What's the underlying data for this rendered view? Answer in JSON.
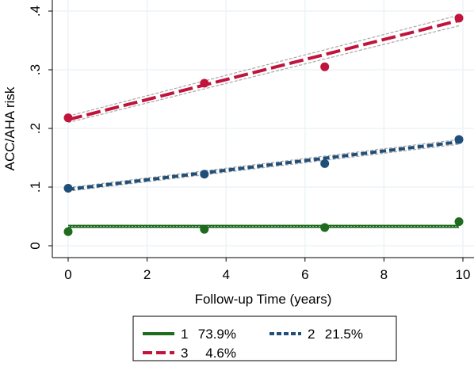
{
  "chart_data": {
    "type": "line",
    "xlabel": "Follow-up Time (years)",
    "ylabel": "ACC/AHA risk",
    "xlim": [
      0,
      10
    ],
    "ylim": [
      0,
      0.4
    ],
    "x_ticks": [
      {
        "value": 0,
        "label": "0"
      },
      {
        "value": 2,
        "label": "2"
      },
      {
        "value": 4,
        "label": "4"
      },
      {
        "value": 6,
        "label": "6"
      },
      {
        "value": 8,
        "label": "8"
      },
      {
        "value": 10,
        "label": "10"
      }
    ],
    "y_ticks": [
      {
        "value": 0,
        "label": "0"
      },
      {
        "value": 0.1,
        "label": ".1"
      },
      {
        "value": 0.2,
        "label": ".2"
      },
      {
        "value": 0.3,
        "label": ".3"
      },
      {
        "value": 0.4,
        "label": ".4"
      }
    ],
    "grid": true,
    "legend_position": "bottom",
    "series": [
      {
        "name": "1",
        "share": "73.9%",
        "color": "#1e6b1e",
        "line_style": "solid",
        "observed": [
          {
            "x": 0,
            "y": 0.024
          },
          {
            "x": 3.45,
            "y": 0.028
          },
          {
            "x": 6.5,
            "y": 0.031
          },
          {
            "x": 9.9,
            "y": 0.041
          }
        ],
        "fitted": [
          {
            "x": 0,
            "y": 0.033
          },
          {
            "x": 9.9,
            "y": 0.033
          }
        ],
        "ci_lower": [
          {
            "x": 0,
            "y": 0.031
          },
          {
            "x": 9.9,
            "y": 0.031
          }
        ],
        "ci_upper": [
          {
            "x": 0,
            "y": 0.035
          },
          {
            "x": 9.9,
            "y": 0.035
          }
        ]
      },
      {
        "name": "2",
        "share": "21.5%",
        "color": "#1f4e79",
        "line_style": "dash",
        "observed": [
          {
            "x": 0,
            "y": 0.098
          },
          {
            "x": 3.45,
            "y": 0.122
          },
          {
            "x": 6.5,
            "y": 0.14
          },
          {
            "x": 9.9,
            "y": 0.181
          }
        ],
        "fitted": [
          {
            "x": 0,
            "y": 0.096
          },
          {
            "x": 9.9,
            "y": 0.177
          }
        ],
        "ci_lower": [
          {
            "x": 0,
            "y": 0.093
          },
          {
            "x": 9.9,
            "y": 0.173
          }
        ],
        "ci_upper": [
          {
            "x": 0,
            "y": 0.099
          },
          {
            "x": 9.9,
            "y": 0.181
          }
        ]
      },
      {
        "name": "3",
        "share": "4.6%",
        "color": "#c0143c",
        "line_style": "longdash",
        "observed": [
          {
            "x": 0,
            "y": 0.218
          },
          {
            "x": 3.45,
            "y": 0.277
          },
          {
            "x": 6.5,
            "y": 0.305
          },
          {
            "x": 9.9,
            "y": 0.388
          }
        ],
        "fitted": [
          {
            "x": 0,
            "y": 0.215
          },
          {
            "x": 9.9,
            "y": 0.384
          }
        ],
        "ci_lower": [
          {
            "x": 0,
            "y": 0.21
          },
          {
            "x": 9.9,
            "y": 0.375
          }
        ],
        "ci_upper": [
          {
            "x": 0,
            "y": 0.221
          },
          {
            "x": 9.9,
            "y": 0.393
          }
        ]
      }
    ]
  }
}
